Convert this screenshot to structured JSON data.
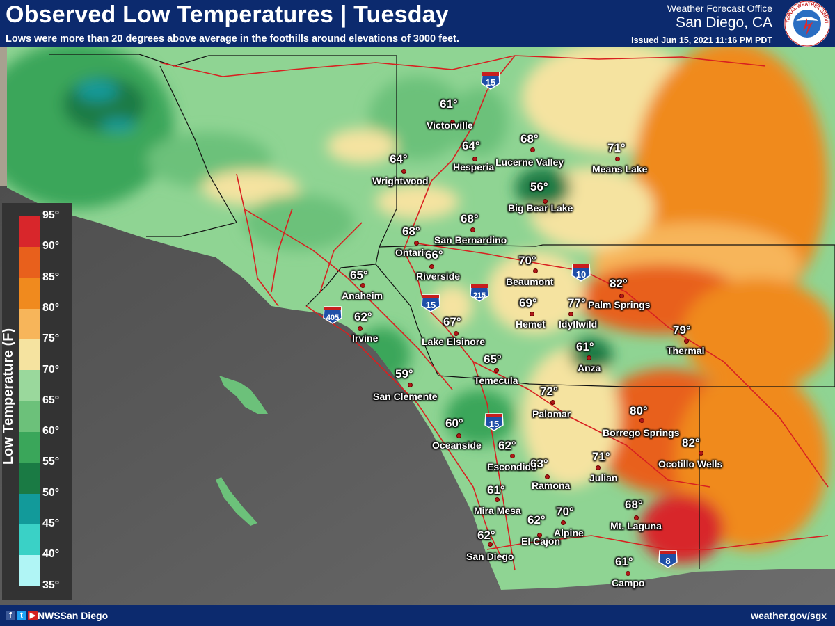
{
  "header": {
    "title": "Observed Low Temperatures | Tuesday",
    "subtitle": "Lows were more than 20 degrees above average in the foothills around elevations of 3000 feet.",
    "office_line1": "Weather Forecast Office",
    "office_line2": "San Diego, CA",
    "issued": "Issued Jun 15, 2021 11:16 PM PDT",
    "seal_text": "NATIONAL WEATHER SERVICE"
  },
  "legend": {
    "title": "Low Temperature (F)",
    "ticks": [
      "95°",
      "90°",
      "85°",
      "80°",
      "75°",
      "70°",
      "65°",
      "60°",
      "55°",
      "50°",
      "45°",
      "40°",
      "35°"
    ],
    "colors": [
      "#d8262b",
      "#e8601c",
      "#f08a1e",
      "#f7b55a",
      "#f5e3a0",
      "#9ad89c",
      "#6cc17a",
      "#3aa65a",
      "#1a7a44",
      "#129a9a",
      "#3ad1c6",
      "#b0f5f5"
    ]
  },
  "shields": [
    "15",
    "10",
    "215",
    "15",
    "405",
    "15",
    "8"
  ],
  "stations": [
    {
      "temp": "61°",
      "name": "Victorville"
    },
    {
      "temp": "64°",
      "name": "Hesperia"
    },
    {
      "temp": "68°",
      "name": "Lucerne Valley"
    },
    {
      "temp": "71°",
      "name": "Means Lake"
    },
    {
      "temp": "64°",
      "name": "Wrightwood"
    },
    {
      "temp": "56°",
      "name": "Big Bear Lake"
    },
    {
      "temp": "68°",
      "name": "San Bernardino"
    },
    {
      "temp": "68°",
      "name": "Ontario"
    },
    {
      "temp": "66°",
      "name": "Riverside"
    },
    {
      "temp": "70°",
      "name": "Beaumont"
    },
    {
      "temp": "65°",
      "name": "Anaheim"
    },
    {
      "temp": "82°",
      "name": "Palm Springs"
    },
    {
      "temp": "69°",
      "name": "Hemet"
    },
    {
      "temp": "77°",
      "name": "Idyllwild"
    },
    {
      "temp": "62°",
      "name": "Irvine"
    },
    {
      "temp": "67°",
      "name": "Lake Elsinore"
    },
    {
      "temp": "79°",
      "name": "Thermal"
    },
    {
      "temp": "61°",
      "name": "Anza"
    },
    {
      "temp": "65°",
      "name": "Temecula"
    },
    {
      "temp": "59°",
      "name": "San Clemente"
    },
    {
      "temp": "72°",
      "name": "Palomar"
    },
    {
      "temp": "80°",
      "name": "Borrego Springs"
    },
    {
      "temp": "60°",
      "name": "Oceanside"
    },
    {
      "temp": "82°",
      "name": "Ocotillo Wells"
    },
    {
      "temp": "62°",
      "name": "Escondido"
    },
    {
      "temp": "63°",
      "name": "Ramona"
    },
    {
      "temp": "71°",
      "name": "Julian"
    },
    {
      "temp": "61°",
      "name": "Mira Mesa"
    },
    {
      "temp": "68°",
      "name": "Mt. Laguna"
    },
    {
      "temp": "70°",
      "name": "Alpine"
    },
    {
      "temp": "62°",
      "name": "El Cajon"
    },
    {
      "temp": "62°",
      "name": "San Diego"
    },
    {
      "temp": "61°",
      "name": "Campo"
    }
  ],
  "footer": {
    "handle": "NWSSan Diego",
    "site": "weather.gov/sgx",
    "social_icons": [
      "facebook-icon",
      "twitter-icon",
      "youtube-icon"
    ]
  }
}
